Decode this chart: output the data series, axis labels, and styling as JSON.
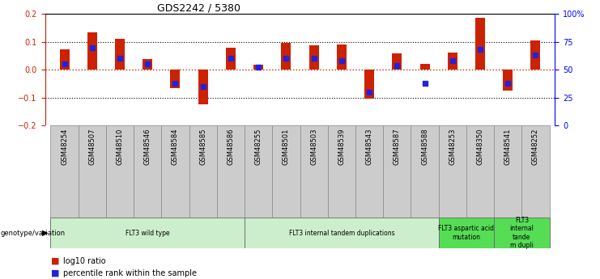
{
  "title": "GDS2242 / 5380",
  "samples": [
    "GSM48254",
    "GSM48507",
    "GSM48510",
    "GSM48546",
    "GSM48584",
    "GSM48585",
    "GSM48586",
    "GSM48255",
    "GSM48501",
    "GSM48503",
    "GSM48539",
    "GSM48543",
    "GSM48587",
    "GSM48588",
    "GSM48253",
    "GSM48350",
    "GSM48541",
    "GSM48252"
  ],
  "log10_ratio": [
    0.072,
    0.135,
    0.112,
    0.038,
    -0.065,
    -0.125,
    0.078,
    0.017,
    0.095,
    0.088,
    0.092,
    -0.105,
    0.06,
    0.022,
    0.062,
    0.185,
    -0.075,
    0.105
  ],
  "percentile_rank": [
    55,
    70,
    60,
    55,
    38,
    35,
    60,
    52,
    60,
    60,
    58,
    30,
    54,
    38,
    58,
    68,
    38,
    63
  ],
  "bar_color": "#cc2200",
  "marker_color": "#2222dd",
  "ylim_left": [
    -0.2,
    0.2
  ],
  "ylim_right": [
    0,
    100
  ],
  "yticks_left": [
    -0.2,
    -0.1,
    0.0,
    0.1,
    0.2
  ],
  "yticks_right": [
    0,
    25,
    50,
    75,
    100
  ],
  "ytick_labels_right": [
    "0",
    "25",
    "50",
    "75",
    "100%"
  ],
  "hline_dotted": [
    -0.1,
    0.1
  ],
  "hline_zero_color": "#cc2200",
  "groups": [
    {
      "label": "FLT3 wild type",
      "start": 0,
      "end": 6,
      "color": "#cceecc"
    },
    {
      "label": "FLT3 internal tandem duplications",
      "start": 7,
      "end": 13,
      "color": "#cceecc"
    },
    {
      "label": "FLT3 aspartic acid\nmutation",
      "start": 14,
      "end": 15,
      "color": "#55dd55"
    },
    {
      "label": "FLT3\ninternal\ntande\nm dupli",
      "start": 16,
      "end": 17,
      "color": "#55dd55"
    }
  ],
  "legend_items": [
    {
      "label": "log10 ratio",
      "color": "#cc2200"
    },
    {
      "label": "percentile rank within the sample",
      "color": "#2222dd"
    }
  ],
  "bar_width": 0.35,
  "cell_color": "#cccccc",
  "cell_border_color": "#888888"
}
